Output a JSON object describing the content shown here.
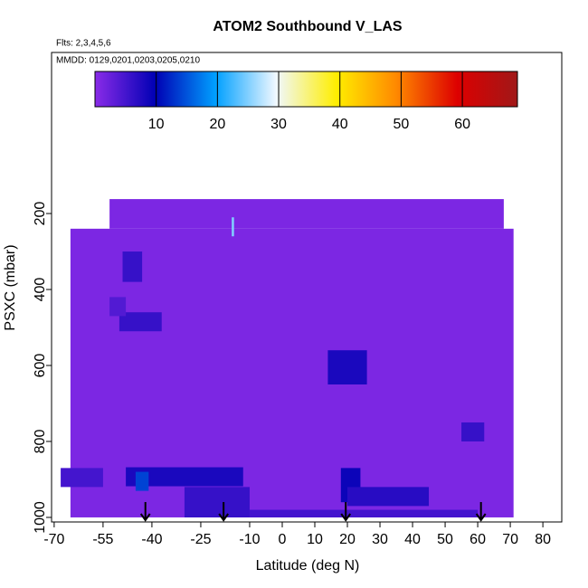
{
  "chart_data": {
    "type": "curtain",
    "title": "ATOM2 Southbound V_LAS",
    "subtitle": "Flts: 2,3,4,5,6",
    "annotation": "MMDD: 0129,0201,0203,0205,0210",
    "x_label": "Latitude (deg N)",
    "y_label": "PSXC (mbar)",
    "xlim": [
      -70.8,
      85.8
    ],
    "ylim": [
      1012,
      -224
    ],
    "xticks": [
      -70,
      -55,
      -40,
      -25,
      -10,
      0,
      10,
      20,
      30,
      40,
      50,
      60,
      70,
      80
    ],
    "yticks": [
      200,
      400,
      600,
      800,
      1000
    ],
    "clim": [
      0,
      69
    ],
    "cticks": [
      10,
      20,
      30,
      40,
      50,
      60
    ],
    "colorscale": [
      "#8a2be8",
      "#0000b4",
      "#00a0ff",
      "#f0f8ff",
      "#ffee00",
      "#ff8800",
      "#dd0000",
      "#a01818"
    ],
    "patches": [
      {
        "lat": [
          -53,
          68
        ],
        "p": [
          162,
          240
        ],
        "value": 1
      },
      {
        "lat": [
          -65,
          71
        ],
        "p": [
          240,
          1000
        ],
        "value": 1
      },
      {
        "lat": [
          -15.5,
          -14.8
        ],
        "p": [
          210,
          260
        ],
        "value": 25
      },
      {
        "lat": [
          -49,
          -43
        ],
        "p": [
          300,
          380
        ],
        "value": 6
      },
      {
        "lat": [
          -50,
          -37
        ],
        "p": [
          460,
          510
        ],
        "value": 6
      },
      {
        "lat": [
          -53,
          -48
        ],
        "p": [
          420,
          470
        ],
        "value": 4
      },
      {
        "lat": [
          14,
          26
        ],
        "p": [
          560,
          650
        ],
        "value": 8
      },
      {
        "lat": [
          55,
          62
        ],
        "p": [
          750,
          800
        ],
        "value": 6
      },
      {
        "lat": [
          -68,
          -55
        ],
        "p": [
          870,
          920
        ],
        "value": 5
      },
      {
        "lat": [
          -48,
          -12
        ],
        "p": [
          868,
          918
        ],
        "value": 8
      },
      {
        "lat": [
          -45,
          -41
        ],
        "p": [
          880,
          930
        ],
        "value": 14
      },
      {
        "lat": [
          18,
          24
        ],
        "p": [
          870,
          960
        ],
        "value": 9
      },
      {
        "lat": [
          -30,
          -10
        ],
        "p": [
          920,
          1000
        ],
        "value": 6
      },
      {
        "lat": [
          20,
          45
        ],
        "p": [
          920,
          970
        ],
        "value": 7
      },
      {
        "lat": [
          -10,
          60
        ],
        "p": [
          980,
          1000
        ],
        "value": 5
      }
    ],
    "arrows": [
      -42,
      -18,
      19.5,
      61
    ]
  }
}
